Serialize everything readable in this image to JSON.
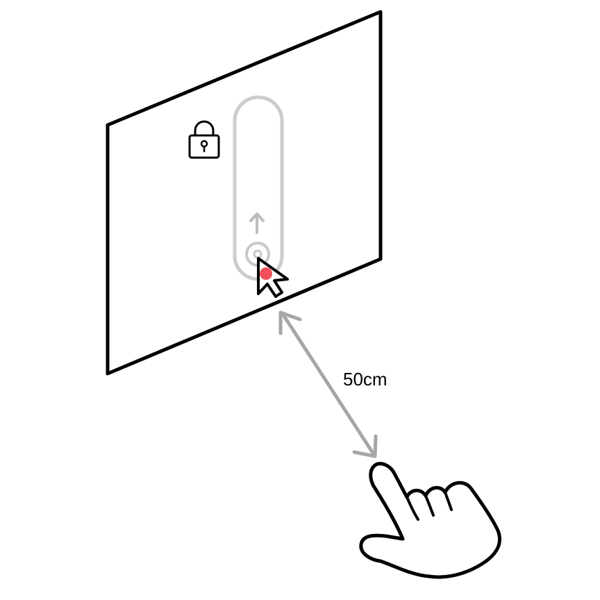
{
  "diagram": {
    "distance_label": "50cm",
    "panel": {
      "lock_icon": "lock-icon",
      "slider": {
        "state": "locked",
        "direction": "up",
        "icon": "arrow-up-icon"
      },
      "cursor": {
        "icon": "cursor-arrow-icon",
        "dot_color": "#f0505a"
      }
    },
    "hand": {
      "icon": "pointing-hand-icon",
      "gesture": "point"
    },
    "colors": {
      "outline": "#000000",
      "slider_track": "#cccccc",
      "distance_arrow": "#a6a6a6",
      "cursor_dot": "#f0505a"
    }
  }
}
